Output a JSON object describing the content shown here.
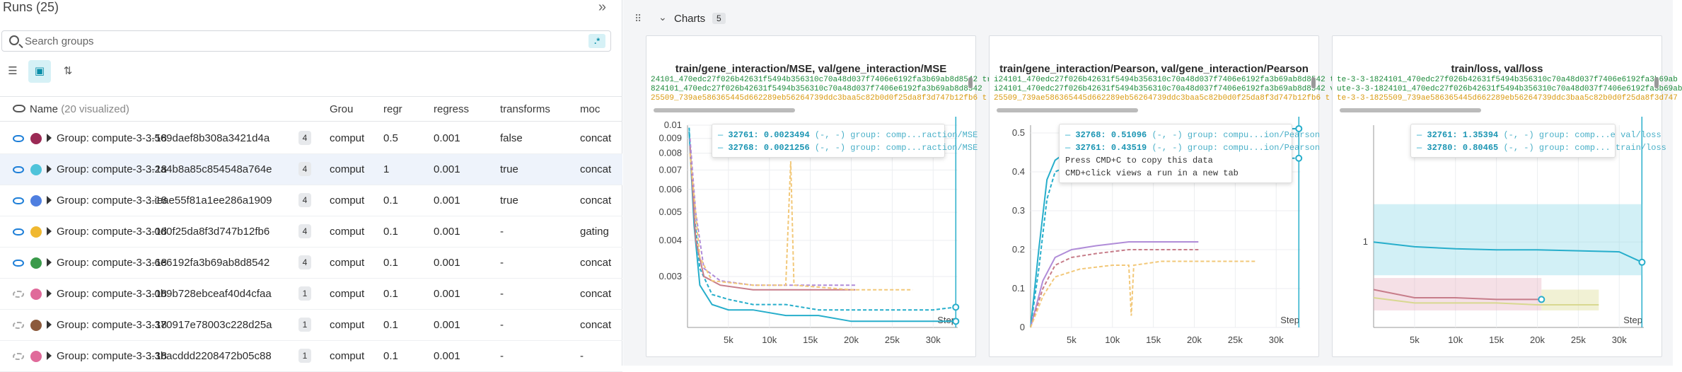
{
  "runs": {
    "title": "Runs (25)",
    "search_placeholder": "Search groups",
    "regex_label": ".*",
    "columns": {
      "name": "Name",
      "visualized": "(20 visualized)",
      "group": "Grou",
      "regr": "regr",
      "regress": "regress",
      "transforms": "transforms",
      "mod": "moc"
    },
    "rows": [
      {
        "name": "Group: compute-3-3-18",
        "suffix": "...569daef8b308a3421d4a",
        "count": "4",
        "color": "#9b2a55",
        "group": "comput",
        "regr": "0.5",
        "regress": "0.001",
        "transforms": "false",
        "mod": "concat",
        "visible": true
      },
      {
        "name": "Group: compute-3-3-18",
        "suffix": "...2a4b8a85c854548a764e",
        "count": "4",
        "color": "#4fc3da",
        "group": "comput",
        "regr": "1",
        "regress": "0.001",
        "transforms": "true",
        "mod": "concat",
        "visible": true
      },
      {
        "name": "Group: compute-3-3-18",
        "suffix": "...ieae55f81a1ee286a1909",
        "count": "4",
        "color": "#4f7fe0",
        "group": "comput",
        "regr": "0.1",
        "regress": "0.001",
        "transforms": "true",
        "mod": "concat",
        "visible": true
      },
      {
        "name": "Group: compute-3-3-18",
        "suffix": "...0d0f25da8f3d747b12fb6",
        "count": "4",
        "color": "#f0b830",
        "group": "comput",
        "regr": "0.1",
        "regress": "0.001",
        "transforms": "-",
        "mod": "gating",
        "visible": true
      },
      {
        "name": "Group: compute-3-3-18",
        "suffix": "...6e6192fa3b69ab8d8542",
        "count": "4",
        "color": "#3a9a4a",
        "group": "comput",
        "regr": "0.1",
        "regress": "0.001",
        "transforms": "-",
        "mod": "concat",
        "visible": true
      },
      {
        "name": "Group: compute-3-3-18",
        "suffix": "...0b9b728ebceaf40d4cfaa",
        "count": "1",
        "color": "#e06a9a",
        "group": "comput",
        "regr": "0.1",
        "regress": "0.001",
        "transforms": "-",
        "mod": "concat",
        "visible": false
      },
      {
        "name": "Group: compute-3-3-18",
        "suffix": "...370917e78003c228d25a",
        "count": "1",
        "color": "#8c5a3c",
        "group": "comput",
        "regr": "0.1",
        "regress": "0.001",
        "transforms": "-",
        "mod": "concat",
        "visible": false
      },
      {
        "name": "Group: compute-3-3-18",
        "suffix": "...3bacddd2208472b05c88",
        "count": "1",
        "color": "#e06a9a",
        "group": "comput",
        "regr": "0.1",
        "regress": "0.001",
        "transforms": "-",
        "mod": "-",
        "visible": false
      }
    ]
  },
  "charts": {
    "section_label": "Charts",
    "count": "5",
    "step_label": "Step",
    "panels": [
      {
        "title": "train/gene_interaction/MSE, val/gene_interaction/MSE",
        "legend": [
          {
            "text": "24101_470edc27f026b42631f5494b356310c70a48d037f7406e6192fa3b69ab8d8542 tr",
            "color": "#1c8a3a"
          },
          {
            "text": "824101_470edc27f026b42631f5494b356310c70a48d037f7406e6192fa3b69ab8d8542",
            "color": "#1c8a3a"
          },
          {
            "text": "25509_739ae586365445d662289eb56264739ddc3baa5c82b0d0f25da8f3d747b12fb6 t",
            "color": "#d99a10"
          }
        ],
        "tooltip": [
          {
            "id": "32761",
            "value": "0.0023494",
            "rest": "(-, -) group: comp...raction/MSE"
          },
          {
            "id": "32768",
            "value": "0.0021256",
            "rest": "(-, -) group: comp...raction/MSE"
          }
        ],
        "tooltip_notes": []
      },
      {
        "title": "train/gene_interaction/Pearson, val/gene_interaction/Pearson",
        "legend": [
          {
            "text": "i24101_470edc27f026b42631f5494b356310c70a48d037f7406e6192fa3b69ab8d8542 trai",
            "color": "#1c8a3a"
          },
          {
            "text": "i24101_470edc27f026b42631f5494b356310c70a48d037f7406e6192fa3b69ab8d8542 va",
            "color": "#1c8a3a"
          },
          {
            "text": "25509_739ae586365445d662289eb56264739ddc3baa5c82b0d0f25da8f3d747b12fb6 t",
            "color": "#d99a10"
          }
        ],
        "tooltip": [
          {
            "id": "32768",
            "value": "0.51096",
            "rest": "(-, -) group: compu...ion/Pearson"
          },
          {
            "id": "32761",
            "value": "0.43519",
            "rest": "(-, -) group: compu...ion/Pearson"
          }
        ],
        "tooltip_notes": [
          "Press CMD+C to copy this data",
          "CMD+click views a run in a new tab"
        ]
      },
      {
        "title": "train/loss, val/loss",
        "legend": [
          {
            "text": "te-3-3-1824101_470edc27f026b42631f5494b356310c70a48d037f7406e6192fa3b69ab",
            "color": "#1c8a3a"
          },
          {
            "text": "ute-3-3-1824101_470edc27f026b42631f5494b356310c70a48d037f7406e6192fa3b69ab",
            "color": "#1c8a3a"
          },
          {
            "text": "te-3-3-1825509_739ae586365445d662289eb56264739ddc3baa5c82b0d0f25da8f3d747",
            "color": "#d99a10"
          }
        ],
        "tooltip": [
          {
            "id": "32761",
            "value": "1.35394",
            "rest": "(-, -) group: comp...e val/loss"
          },
          {
            "id": "32780",
            "value": "0.80465",
            "rest": "(-, -) group: comp... train/loss"
          }
        ],
        "tooltip_notes": []
      }
    ]
  },
  "chart_data": [
    {
      "type": "line",
      "title": "train/gene_interaction/MSE, val/gene_interaction/MSE",
      "xlabel": "Step",
      "x_ticks": [
        "5k",
        "10k",
        "15k",
        "20k",
        "25k",
        "30k"
      ],
      "y_ticks": [
        "0.003",
        "0.004",
        "0.005",
        "0.006",
        "0.007",
        "0.008",
        "0.009",
        "0.01"
      ],
      "y_scale": "log",
      "xlim": [
        0,
        33000
      ],
      "ylim": [
        0.002,
        0.01
      ],
      "series": [
        {
          "color": "#27aecb",
          "x": [
            200,
            800,
            1500,
            3000,
            5000,
            8000,
            12000,
            16000,
            20000,
            25000,
            30000,
            32768
          ],
          "y": [
            0.0095,
            0.0045,
            0.0028,
            0.0024,
            0.0023,
            0.0023,
            0.0022,
            0.0022,
            0.0021,
            0.0021,
            0.0021,
            0.0021
          ]
        },
        {
          "color": "#27aecb",
          "dash": true,
          "x": [
            200,
            800,
            1500,
            3000,
            5000,
            8000,
            12000,
            16000,
            20000,
            25000,
            30000,
            32761
          ],
          "y": [
            0.0098,
            0.005,
            0.0032,
            0.0026,
            0.0025,
            0.0024,
            0.0024,
            0.0023,
            0.0023,
            0.0023,
            0.0023,
            0.00235
          ]
        },
        {
          "color": "#c77d8a",
          "x": [
            300,
            1000,
            2000,
            4000,
            8000,
            12000,
            16000,
            20500
          ],
          "y": [
            0.0085,
            0.004,
            0.003,
            0.0028,
            0.0027,
            0.0027,
            0.0027,
            0.0027
          ]
        },
        {
          "color": "#b08cd8",
          "dash": true,
          "x": [
            300,
            1000,
            2000,
            4000,
            8000,
            12000,
            16000,
            20500
          ],
          "y": [
            0.009,
            0.005,
            0.0032,
            0.0029,
            0.0028,
            0.0028,
            0.0028,
            0.0028
          ]
        },
        {
          "color": "#f2c879",
          "dash": true,
          "x": [
            300,
            1500,
            3000,
            8000,
            12000,
            12600,
            13000,
            20000,
            27500
          ],
          "y": [
            0.008,
            0.0035,
            0.0029,
            0.0028,
            0.0028,
            0.0075,
            0.0028,
            0.0027,
            0.0027
          ]
        }
      ]
    },
    {
      "type": "line",
      "title": "train/gene_interaction/Pearson, val/gene_interaction/Pearson",
      "xlabel": "Step",
      "x_ticks": [
        "5k",
        "10k",
        "15k",
        "20k",
        "25k",
        "30k"
      ],
      "y_ticks": [
        "0",
        "0.1",
        "0.2",
        "0.3",
        "0.4",
        "0.5"
      ],
      "xlim": [
        0,
        33000
      ],
      "ylim": [
        0,
        0.52
      ],
      "series": [
        {
          "color": "#27aecb",
          "x": [
            0,
            1000,
            2000,
            3000,
            5000,
            8000,
            12000,
            16000,
            20000,
            25000,
            30000,
            32768
          ],
          "y": [
            0.0,
            0.2,
            0.38,
            0.43,
            0.46,
            0.48,
            0.49,
            0.5,
            0.5,
            0.51,
            0.51,
            0.511
          ]
        },
        {
          "color": "#27aecb",
          "dash": true,
          "x": [
            0,
            1000,
            2000,
            3000,
            5000,
            8000,
            12000,
            16000,
            20000,
            25000,
            30000,
            32761
          ],
          "y": [
            0.0,
            0.15,
            0.33,
            0.4,
            0.42,
            0.43,
            0.43,
            0.435,
            0.435,
            0.435,
            0.435,
            0.435
          ]
        },
        {
          "color": "#b08cd8",
          "x": [
            0,
            1500,
            3000,
            5000,
            8000,
            12000,
            16000,
            20500
          ],
          "y": [
            0.0,
            0.12,
            0.18,
            0.2,
            0.21,
            0.22,
            0.22,
            0.22
          ]
        },
        {
          "color": "#c77d8a",
          "dash": true,
          "x": [
            0,
            1500,
            3000,
            5000,
            8000,
            12000,
            16000,
            20500
          ],
          "y": [
            0.0,
            0.1,
            0.16,
            0.18,
            0.19,
            0.2,
            0.2,
            0.2
          ]
        },
        {
          "color": "#f2c879",
          "dash": true,
          "x": [
            0,
            1500,
            3000,
            6000,
            10000,
            12000,
            12300,
            12600,
            16000,
            20000,
            27500
          ],
          "y": [
            0.0,
            0.08,
            0.13,
            0.15,
            0.16,
            0.16,
            0.03,
            0.16,
            0.17,
            0.17,
            0.17
          ]
        }
      ]
    },
    {
      "type": "line",
      "title": "train/loss, val/loss",
      "xlabel": "Step",
      "x_ticks": [
        "5k",
        "10k",
        "15k",
        "20k",
        "25k",
        "30k"
      ],
      "y_ticks": [
        "1"
      ],
      "y_scale": "log",
      "xlim": [
        0,
        33000
      ],
      "series": [
        {
          "color": "#27aecb",
          "x": [
            0,
            5000,
            10000,
            15000,
            20000,
            25000,
            30000,
            32780
          ],
          "y": [
            1.0,
            0.95,
            0.93,
            0.92,
            0.92,
            0.91,
            0.9,
            0.805
          ]
        },
        {
          "color": "#c77d8a",
          "x": [
            0,
            5000,
            10000,
            15000,
            20500
          ],
          "y": [
            0.6,
            0.55,
            0.55,
            0.54,
            0.54
          ]
        },
        {
          "color": "#d8d890",
          "x": [
            0,
            5000,
            10000,
            15000,
            20000,
            27500
          ],
          "y": [
            0.55,
            0.52,
            0.52,
            0.52,
            0.51,
            0.51
          ]
        }
      ]
    }
  ]
}
